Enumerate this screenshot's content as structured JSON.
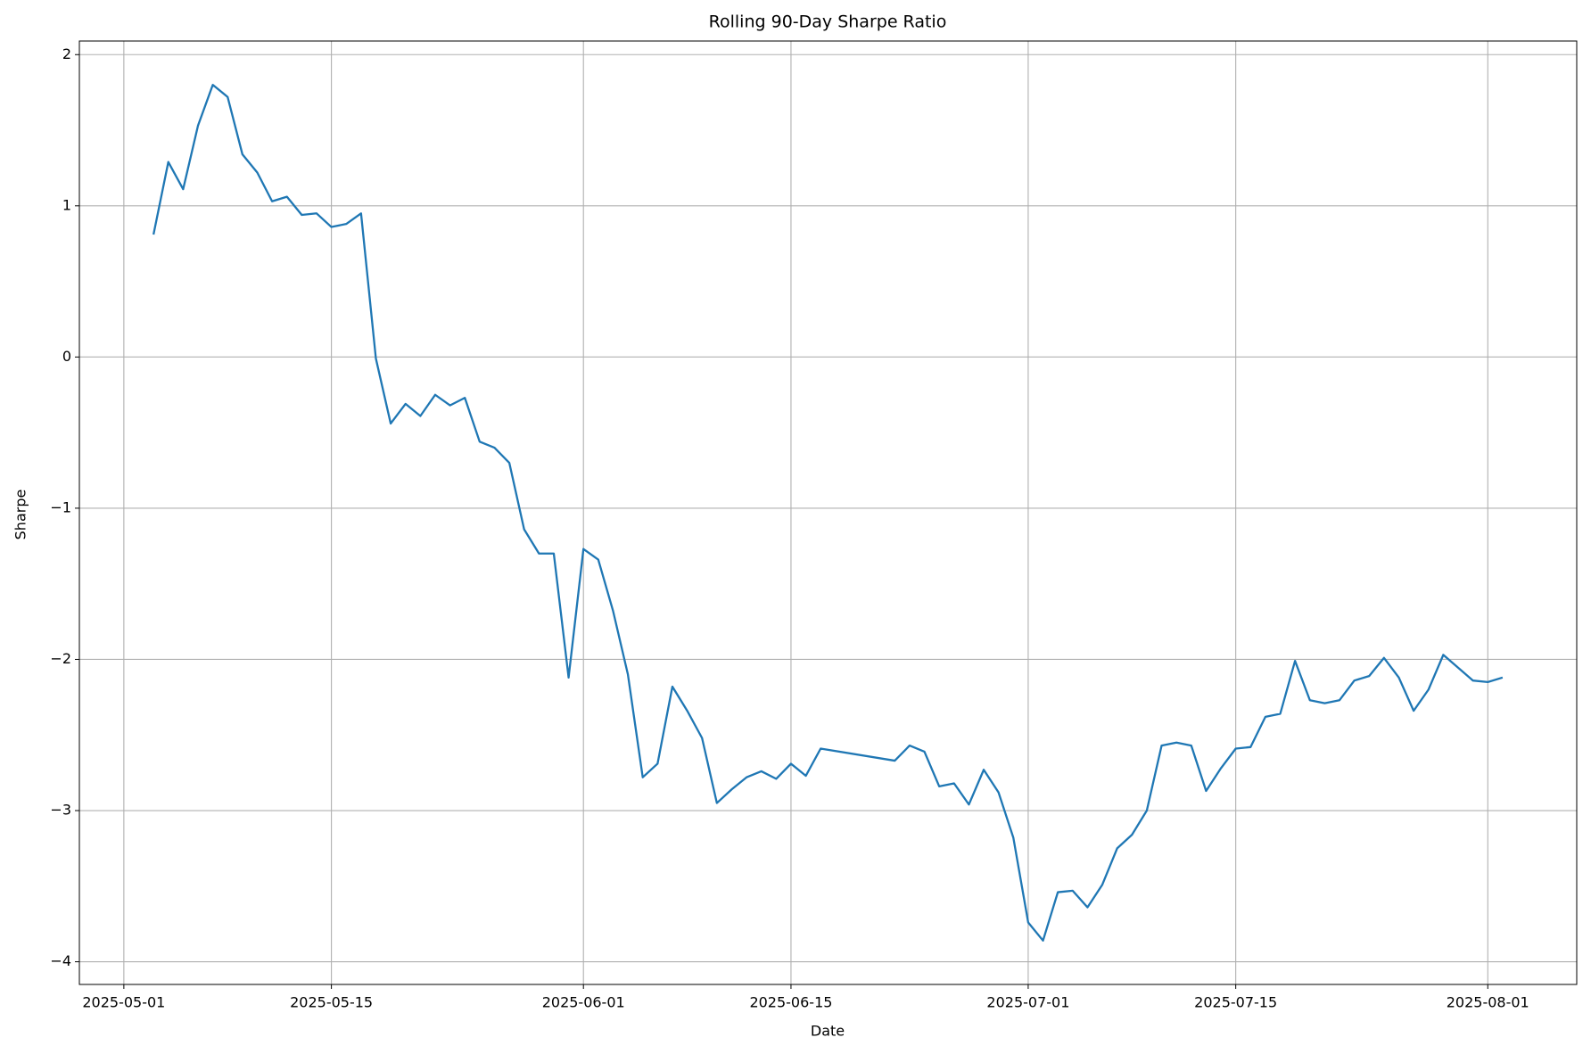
{
  "chart_data": {
    "type": "line",
    "title": "Rolling 90-Day Sharpe Ratio",
    "x_label": "Date",
    "y_label": "Sharpe",
    "x": [
      "2025-05-03",
      "2025-05-04",
      "2025-05-05",
      "2025-05-06",
      "2025-05-07",
      "2025-05-08",
      "2025-05-09",
      "2025-05-10",
      "2025-05-11",
      "2025-05-12",
      "2025-05-13",
      "2025-05-14",
      "2025-05-15",
      "2025-05-16",
      "2025-05-17",
      "2025-05-18",
      "2025-05-19",
      "2025-05-20",
      "2025-05-21",
      "2025-05-22",
      "2025-05-23",
      "2025-05-24",
      "2025-05-25",
      "2025-05-26",
      "2025-05-27",
      "2025-05-28",
      "2025-05-29",
      "2025-05-30",
      "2025-05-31",
      "2025-06-01",
      "2025-06-02",
      "2025-06-03",
      "2025-06-04",
      "2025-06-05",
      "2025-06-06",
      "2025-06-07",
      "2025-06-08",
      "2025-06-09",
      "2025-06-10",
      "2025-06-11",
      "2025-06-12",
      "2025-06-13",
      "2025-06-14",
      "2025-06-15",
      "2025-06-16",
      "2025-06-17",
      "2025-06-22",
      "2025-06-23",
      "2025-06-24",
      "2025-06-25",
      "2025-06-26",
      "2025-06-27",
      "2025-06-28",
      "2025-06-29",
      "2025-06-30",
      "2025-07-01",
      "2025-07-02",
      "2025-07-03",
      "2025-07-04",
      "2025-07-05",
      "2025-07-06",
      "2025-07-07",
      "2025-07-08",
      "2025-07-09",
      "2025-07-10",
      "2025-07-11",
      "2025-07-12",
      "2025-07-13",
      "2025-07-14",
      "2025-07-15",
      "2025-07-16",
      "2025-07-17",
      "2025-07-18",
      "2025-07-19",
      "2025-07-20",
      "2025-07-21",
      "2025-07-22",
      "2025-07-23",
      "2025-07-24",
      "2025-07-25",
      "2025-07-26",
      "2025-07-27",
      "2025-07-28",
      "2025-07-29",
      "2025-07-31",
      "2025-08-01",
      "2025-08-02"
    ],
    "series": [
      {
        "name": "Sharpe",
        "color": "#1f77b4",
        "values": [
          0.81,
          1.29,
          1.11,
          1.53,
          1.8,
          1.72,
          1.34,
          1.22,
          1.03,
          1.06,
          0.94,
          0.95,
          0.86,
          0.88,
          0.95,
          -0.01,
          -0.44,
          -0.31,
          -0.39,
          -0.25,
          -0.32,
          -0.27,
          -0.56,
          -0.6,
          -0.7,
          -1.14,
          -1.3,
          -1.3,
          -2.12,
          -1.27,
          -1.34,
          -1.68,
          -2.1,
          -2.78,
          -2.69,
          -2.18,
          -2.34,
          -2.52,
          -2.95,
          -2.86,
          -2.78,
          -2.74,
          -2.79,
          -2.69,
          -2.77,
          -2.59,
          -2.67,
          -2.57,
          -2.61,
          -2.84,
          -2.82,
          -2.96,
          -2.73,
          -2.88,
          -3.18,
          -3.74,
          -3.86,
          -3.54,
          -3.53,
          -3.64,
          -3.49,
          -3.25,
          -3.16,
          -3.0,
          -2.57,
          -2.55,
          -2.57,
          -2.87,
          -2.72,
          -2.59,
          -2.58,
          -2.38,
          -2.36,
          -2.01,
          -2.27,
          -2.29,
          -2.27,
          -2.14,
          -2.11,
          -1.99,
          -2.12,
          -2.34,
          -2.2,
          -1.97,
          -2.14,
          -2.15,
          -2.12
        ]
      }
    ],
    "xlim": [
      "2025-04-28",
      "2025-08-07"
    ],
    "xticks": [
      "2025-05-01",
      "2025-05-15",
      "2025-06-01",
      "2025-06-15",
      "2025-07-01",
      "2025-07-15",
      "2025-08-01"
    ],
    "ylim": [
      -4.15,
      2.09
    ],
    "yticks": [
      {
        "value": -4,
        "label": "−4"
      },
      {
        "value": -3,
        "label": "−3"
      },
      {
        "value": -2,
        "label": "−2"
      },
      {
        "value": -1,
        "label": "−1"
      },
      0,
      1,
      2
    ],
    "grid": true
  }
}
